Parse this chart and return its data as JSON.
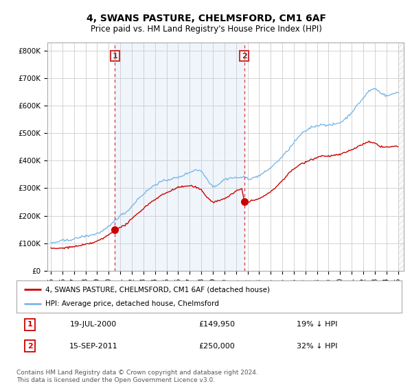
{
  "title": "4, SWANS PASTURE, CHELMSFORD, CM1 6AF",
  "subtitle": "Price paid vs. HM Land Registry's House Price Index (HPI)",
  "title_fontsize": 10,
  "subtitle_fontsize": 8.5,
  "ylabel_ticks": [
    "£0",
    "£100K",
    "£200K",
    "£300K",
    "£400K",
    "£500K",
    "£600K",
    "£700K",
    "£800K"
  ],
  "ytick_values": [
    0,
    100000,
    200000,
    300000,
    400000,
    500000,
    600000,
    700000,
    800000
  ],
  "ylim": [
    0,
    830000
  ],
  "xlim_start": 1994.7,
  "xlim_end": 2025.5,
  "hpi_color": "#7ab8e8",
  "price_color": "#cc0000",
  "shade_color": "#ddeeff",
  "vline_color": "#dd4444",
  "vline_style": "--",
  "marker1_year": 2000.54,
  "marker1_price": 149950,
  "marker1_label": "19-JUL-2000",
  "marker1_text": "£149,950",
  "marker1_pct": "19% ↓ HPI",
  "marker2_year": 2011.71,
  "marker2_price": 250000,
  "marker2_label": "15-SEP-2011",
  "marker2_text": "£250,000",
  "marker2_pct": "32% ↓ HPI",
  "legend_label_price": "4, SWANS PASTURE, CHELMSFORD, CM1 6AF (detached house)",
  "legend_label_hpi": "HPI: Average price, detached house, Chelmsford",
  "footnote": "Contains HM Land Registry data © Crown copyright and database right 2024.\nThis data is licensed under the Open Government Licence v3.0.",
  "footnote_fontsize": 6.5,
  "background_color": "#ffffff",
  "grid_color": "#cccccc",
  "xtick_years": [
    "95",
    "96",
    "97",
    "98",
    "99",
    "00",
    "01",
    "02",
    "03",
    "04",
    "05",
    "06",
    "07",
    "08",
    "09",
    "10",
    "11",
    "12",
    "13",
    "14",
    "15",
    "16",
    "17",
    "18",
    "19",
    "20",
    "21",
    "22",
    "23",
    "24",
    "25"
  ],
  "xtick_year_vals": [
    1995,
    1996,
    1997,
    1998,
    1999,
    2000,
    2001,
    2002,
    2003,
    2004,
    2005,
    2006,
    2007,
    2008,
    2009,
    2010,
    2011,
    2012,
    2013,
    2014,
    2015,
    2016,
    2017,
    2018,
    2019,
    2020,
    2021,
    2022,
    2023,
    2024,
    2025
  ]
}
